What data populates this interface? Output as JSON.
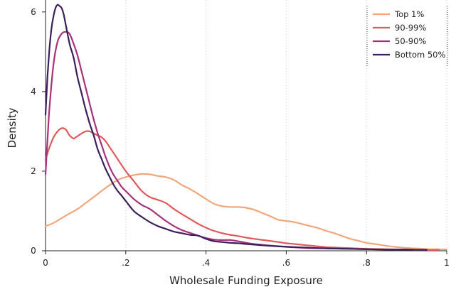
{
  "chart_data": {
    "type": "line",
    "xlabel": "Wholesale Funding Exposure",
    "ylabel": "Density",
    "xlim": [
      0,
      1
    ],
    "ylim": [
      0,
      6.3
    ],
    "x_ticks": [
      0,
      0.2,
      0.4,
      0.6,
      0.8,
      1
    ],
    "x_tick_labels": [
      "0",
      ".2",
      ".4",
      ".6",
      ".8",
      "1"
    ],
    "y_ticks": [
      0,
      2,
      4,
      6
    ],
    "y_tick_labels": [
      "0",
      "2",
      "4",
      "6"
    ],
    "grid": "vertical dotted",
    "legend_position": "top-right",
    "series": [
      {
        "name": "Top 1%",
        "color": "#f0a77b",
        "x": [
          0,
          0.02,
          0.05,
          0.08,
          0.1,
          0.12,
          0.15,
          0.18,
          0.2,
          0.22,
          0.24,
          0.26,
          0.28,
          0.3,
          0.32,
          0.34,
          0.36,
          0.38,
          0.4,
          0.42,
          0.44,
          0.46,
          0.48,
          0.5,
          0.52,
          0.54,
          0.56,
          0.58,
          0.6,
          0.62,
          0.64,
          0.66,
          0.68,
          0.7,
          0.72,
          0.74,
          0.76,
          0.78,
          0.8,
          0.82,
          0.84,
          0.86,
          0.88,
          0.9,
          0.92,
          0.94,
          0.96,
          0.98,
          1.0
        ],
        "values": [
          0.62,
          0.7,
          0.88,
          1.05,
          1.2,
          1.35,
          1.58,
          1.78,
          1.85,
          1.9,
          1.93,
          1.92,
          1.88,
          1.85,
          1.78,
          1.65,
          1.55,
          1.43,
          1.3,
          1.18,
          1.12,
          1.1,
          1.1,
          1.08,
          1.03,
          0.95,
          0.87,
          0.78,
          0.75,
          0.72,
          0.67,
          0.62,
          0.57,
          0.5,
          0.44,
          0.37,
          0.3,
          0.25,
          0.2,
          0.17,
          0.14,
          0.11,
          0.09,
          0.07,
          0.06,
          0.05,
          0.04,
          0.04,
          0.03
        ]
      },
      {
        "name": "90-99%",
        "color": "#e05a5a",
        "x": [
          0,
          0.01,
          0.02,
          0.03,
          0.04,
          0.05,
          0.06,
          0.07,
          0.075,
          0.08,
          0.09,
          0.1,
          0.11,
          0.12,
          0.13,
          0.14,
          0.15,
          0.16,
          0.18,
          0.2,
          0.22,
          0.24,
          0.26,
          0.28,
          0.3,
          0.32,
          0.34,
          0.36,
          0.38,
          0.4,
          0.42,
          0.45,
          0.48,
          0.5,
          0.52,
          0.55,
          0.58,
          0.6,
          0.62,
          0.65,
          0.68,
          0.7,
          0.75,
          0.8,
          0.85,
          0.9,
          0.95,
          0.98
        ],
        "values": [
          2.3,
          2.6,
          2.85,
          3.0,
          3.08,
          3.05,
          2.9,
          2.82,
          2.85,
          2.88,
          2.95,
          3.0,
          3.0,
          2.95,
          2.9,
          2.85,
          2.75,
          2.6,
          2.3,
          2.0,
          1.75,
          1.5,
          1.35,
          1.28,
          1.2,
          1.05,
          0.92,
          0.8,
          0.68,
          0.58,
          0.5,
          0.42,
          0.37,
          0.33,
          0.3,
          0.26,
          0.22,
          0.19,
          0.17,
          0.14,
          0.11,
          0.09,
          0.07,
          0.05,
          0.04,
          0.03,
          0.02,
          0.02
        ]
      },
      {
        "name": "50-90%",
        "color": "#a83279",
        "x": [
          0,
          0.005,
          0.01,
          0.02,
          0.03,
          0.04,
          0.05,
          0.06,
          0.07,
          0.08,
          0.09,
          0.1,
          0.11,
          0.12,
          0.13,
          0.14,
          0.15,
          0.16,
          0.17,
          0.18,
          0.19,
          0.2,
          0.22,
          0.24,
          0.26,
          0.28,
          0.3,
          0.32,
          0.34,
          0.36,
          0.38,
          0.4,
          0.42,
          0.44,
          0.46,
          0.48,
          0.5,
          0.52,
          0.55,
          0.6,
          0.65,
          0.7,
          0.75,
          0.8,
          0.85,
          0.9,
          0.95
        ],
        "values": [
          1.92,
          2.8,
          3.6,
          4.7,
          5.25,
          5.45,
          5.5,
          5.45,
          5.2,
          4.9,
          4.5,
          4.1,
          3.7,
          3.3,
          2.95,
          2.65,
          2.35,
          2.1,
          1.9,
          1.75,
          1.6,
          1.5,
          1.3,
          1.15,
          1.05,
          0.9,
          0.75,
          0.62,
          0.52,
          0.45,
          0.38,
          0.32,
          0.28,
          0.27,
          0.27,
          0.24,
          0.2,
          0.17,
          0.14,
          0.1,
          0.07,
          0.06,
          0.05,
          0.04,
          0.03,
          0.03,
          0.02
        ]
      },
      {
        "name": "Bottom 50%",
        "color": "#3b1f5c",
        "x": [
          0,
          0.005,
          0.01,
          0.015,
          0.02,
          0.025,
          0.03,
          0.035,
          0.04,
          0.045,
          0.05,
          0.06,
          0.07,
          0.08,
          0.09,
          0.1,
          0.11,
          0.12,
          0.13,
          0.14,
          0.15,
          0.16,
          0.17,
          0.18,
          0.19,
          0.2,
          0.22,
          0.24,
          0.26,
          0.28,
          0.3,
          0.32,
          0.34,
          0.36,
          0.38,
          0.4,
          0.42,
          0.44,
          0.46,
          0.48,
          0.5,
          0.55,
          0.6,
          0.65,
          0.7,
          0.75,
          0.8,
          0.85,
          0.9,
          0.95
        ],
        "values": [
          3.42,
          4.4,
          5.1,
          5.6,
          5.9,
          6.1,
          6.18,
          6.15,
          6.1,
          5.95,
          5.7,
          5.2,
          4.85,
          4.35,
          3.95,
          3.55,
          3.2,
          2.9,
          2.55,
          2.3,
          2.05,
          1.85,
          1.65,
          1.5,
          1.38,
          1.25,
          1.0,
          0.85,
          0.72,
          0.62,
          0.55,
          0.48,
          0.44,
          0.4,
          0.38,
          0.3,
          0.24,
          0.22,
          0.2,
          0.19,
          0.17,
          0.13,
          0.1,
          0.08,
          0.06,
          0.05,
          0.04,
          0.03,
          0.03,
          0.02
        ]
      }
    ]
  }
}
